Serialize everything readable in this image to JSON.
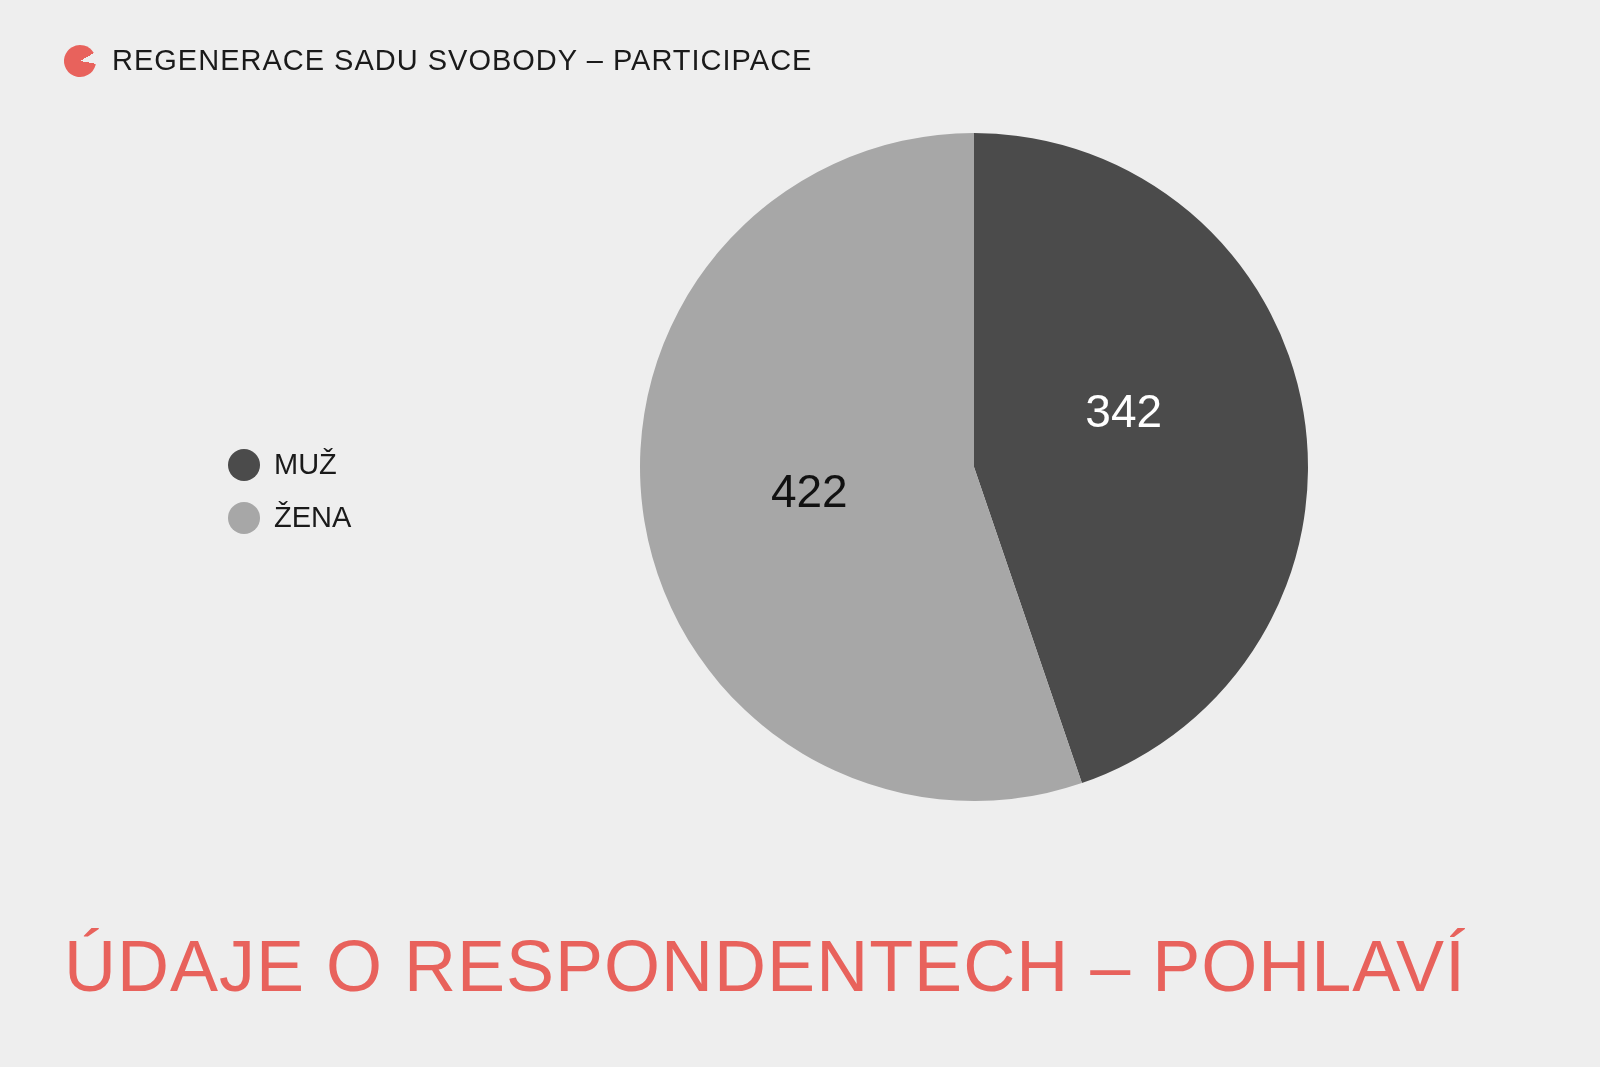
{
  "chart_data": {
    "type": "pie",
    "title": "ÚDAJE O RESPONDENTECH – POHLAVÍ",
    "subtitle": "REGENERACE SADU SVOBODY – PARTICIPACE",
    "categories": [
      "MUŽ",
      "ŽENA"
    ],
    "values": [
      342,
      422
    ],
    "colors": [
      "#4b4b4b",
      "#a7a7a7"
    ],
    "data_labels": true,
    "legend": "left"
  }
}
